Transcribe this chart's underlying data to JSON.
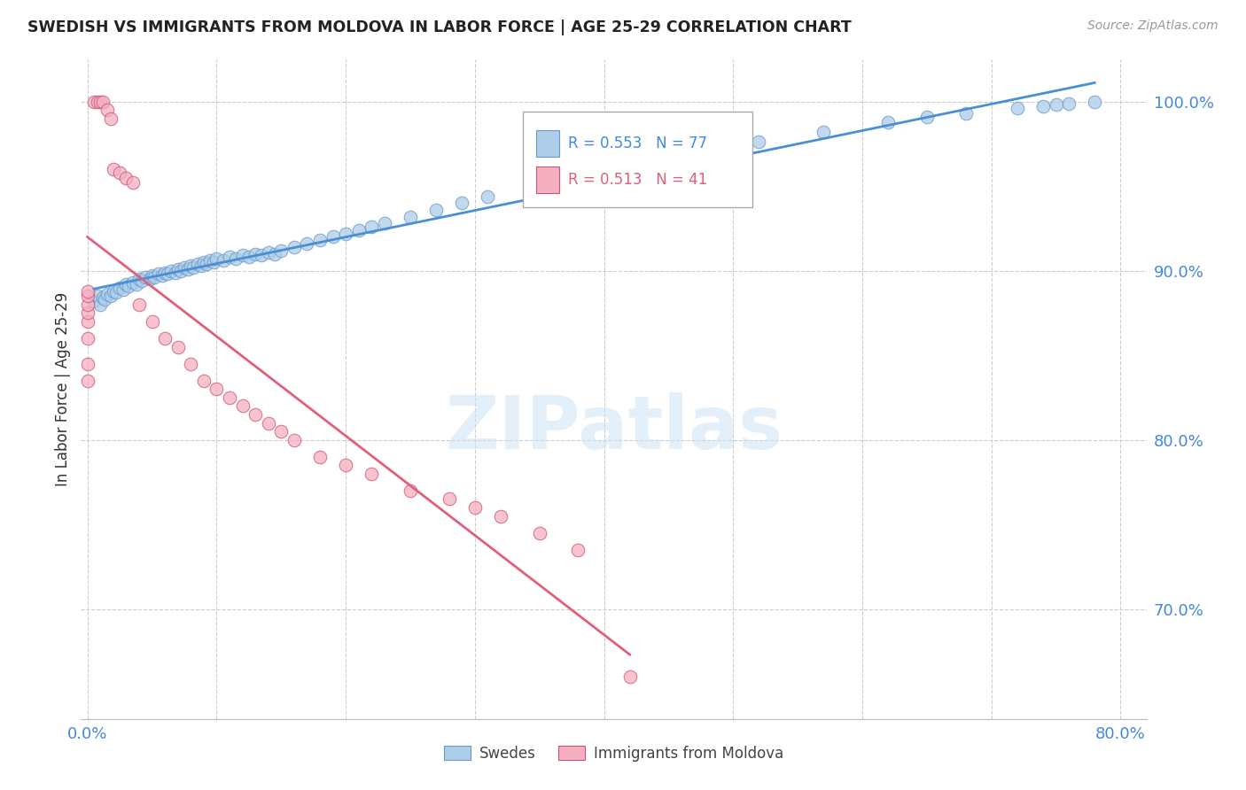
{
  "title": "SWEDISH VS IMMIGRANTS FROM MOLDOVA IN LABOR FORCE | AGE 25-29 CORRELATION CHART",
  "source": "Source: ZipAtlas.com",
  "ylabel": "In Labor Force | Age 25-29",
  "ytick_values": [
    0.7,
    0.8,
    0.9,
    1.0
  ],
  "xlim": [
    -0.005,
    0.82
  ],
  "ylim": [
    0.635,
    1.025
  ],
  "swedes_R": 0.553,
  "swedes_N": 77,
  "moldova_R": 0.513,
  "moldova_N": 41,
  "blue_color": "#aecde8",
  "pink_color": "#f4afc0",
  "blue_line_color": "#4a8fd4",
  "pink_line_color": "#e0607a",
  "blue_edge": "#6699cc",
  "pink_edge": "#cc5577",
  "tick_color": "#4488dd",
  "grid_color": "#cccccc",
  "legend_label_swedes": "Swedes",
  "legend_label_moldova": "Immigrants from Moldova",
  "swedes_x": [
    0.005,
    0.008,
    0.01,
    0.012,
    0.013,
    0.015,
    0.018,
    0.02,
    0.022,
    0.025,
    0.028,
    0.03,
    0.032,
    0.035,
    0.038,
    0.04,
    0.042,
    0.045,
    0.048,
    0.05,
    0.052,
    0.055,
    0.058,
    0.06,
    0.062,
    0.065,
    0.068,
    0.07,
    0.072,
    0.075,
    0.078,
    0.08,
    0.082,
    0.085,
    0.088,
    0.09,
    0.092,
    0.095,
    0.098,
    0.1,
    0.105,
    0.11,
    0.115,
    0.12,
    0.125,
    0.13,
    0.135,
    0.14,
    0.145,
    0.15,
    0.16,
    0.17,
    0.18,
    0.19,
    0.2,
    0.21,
    0.22,
    0.23,
    0.25,
    0.27,
    0.29,
    0.31,
    0.35,
    0.38,
    0.42,
    0.46,
    0.5,
    0.52,
    0.57,
    0.62,
    0.65,
    0.68,
    0.72,
    0.74,
    0.75,
    0.76,
    0.78
  ],
  "swedes_y": [
    0.882,
    0.885,
    0.88,
    0.884,
    0.883,
    0.886,
    0.885,
    0.888,
    0.887,
    0.89,
    0.889,
    0.892,
    0.891,
    0.893,
    0.892,
    0.895,
    0.894,
    0.896,
    0.895,
    0.897,
    0.896,
    0.898,
    0.897,
    0.899,
    0.898,
    0.9,
    0.899,
    0.901,
    0.9,
    0.902,
    0.901,
    0.903,
    0.902,
    0.904,
    0.903,
    0.905,
    0.904,
    0.906,
    0.905,
    0.907,
    0.906,
    0.908,
    0.907,
    0.909,
    0.908,
    0.91,
    0.909,
    0.911,
    0.91,
    0.912,
    0.914,
    0.916,
    0.918,
    0.92,
    0.922,
    0.924,
    0.926,
    0.928,
    0.932,
    0.936,
    0.94,
    0.944,
    0.952,
    0.956,
    0.962,
    0.968,
    0.974,
    0.976,
    0.982,
    0.988,
    0.991,
    0.993,
    0.996,
    0.997,
    0.998,
    0.999,
    1.0
  ],
  "moldova_x": [
    0.0,
    0.0,
    0.0,
    0.0,
    0.0,
    0.0,
    0.0,
    0.0,
    0.005,
    0.008,
    0.01,
    0.012,
    0.015,
    0.018,
    0.02,
    0.025,
    0.03,
    0.035,
    0.04,
    0.05,
    0.06,
    0.07,
    0.08,
    0.09,
    0.1,
    0.11,
    0.12,
    0.13,
    0.14,
    0.15,
    0.16,
    0.18,
    0.2,
    0.22,
    0.25,
    0.28,
    0.3,
    0.32,
    0.35,
    0.38,
    0.42
  ],
  "moldova_y": [
    0.87,
    0.875,
    0.88,
    0.885,
    0.888,
    0.86,
    0.845,
    0.835,
    1.0,
    1.0,
    1.0,
    1.0,
    0.995,
    0.99,
    0.96,
    0.958,
    0.955,
    0.952,
    0.88,
    0.87,
    0.86,
    0.855,
    0.845,
    0.835,
    0.83,
    0.825,
    0.82,
    0.815,
    0.81,
    0.805,
    0.8,
    0.79,
    0.785,
    0.78,
    0.77,
    0.765,
    0.76,
    0.755,
    0.745,
    0.735,
    0.66
  ]
}
